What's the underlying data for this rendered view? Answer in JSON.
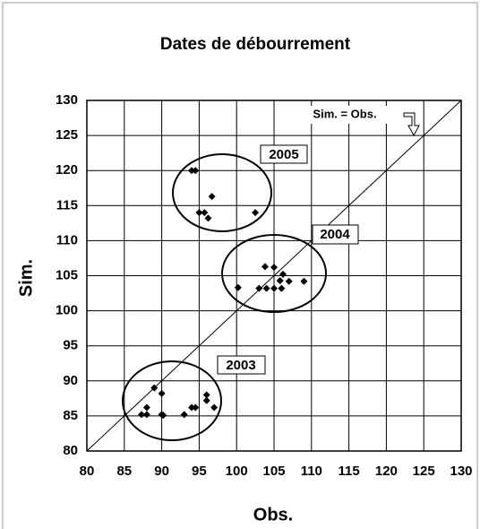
{
  "chart_data": {
    "type": "scatter",
    "title": "Dates de débourrement",
    "x_label": "Obs.",
    "y_label": "Sim.",
    "x": [
      94,
      94.5,
      96.7,
      95,
      95.7,
      96.2,
      102.5,
      100.2,
      103.8,
      105,
      103,
      104,
      105,
      106.2,
      105.8,
      107,
      106,
      109,
      89,
      90,
      87.3,
      88,
      88,
      90,
      90.2,
      93,
      94,
      94.5,
      96,
      96,
      97
    ],
    "values": [
      120,
      120,
      116.3,
      114,
      114,
      113.2,
      114,
      103.3,
      106.3,
      106.2,
      103.2,
      103.2,
      103.2,
      105.2,
      104.3,
      104.2,
      103.2,
      104.2,
      89,
      88.2,
      85.2,
      86.2,
      85.2,
      85.2,
      85.1,
      85.2,
      86.2,
      86.2,
      88,
      87.2,
      86.2
    ],
    "color": "#000000",
    "xlim": [
      80,
      130
    ],
    "xticks": [
      80,
      85,
      90,
      95,
      100,
      105,
      110,
      115,
      120,
      125,
      130
    ],
    "ylim": [
      80,
      130
    ],
    "yticks": [
      80,
      85,
      90,
      95,
      100,
      105,
      110,
      115,
      120,
      125,
      130
    ],
    "grid": true,
    "annotations": [
      "Sim. = Obs.",
      "2005",
      "2004",
      "2003"
    ]
  }
}
